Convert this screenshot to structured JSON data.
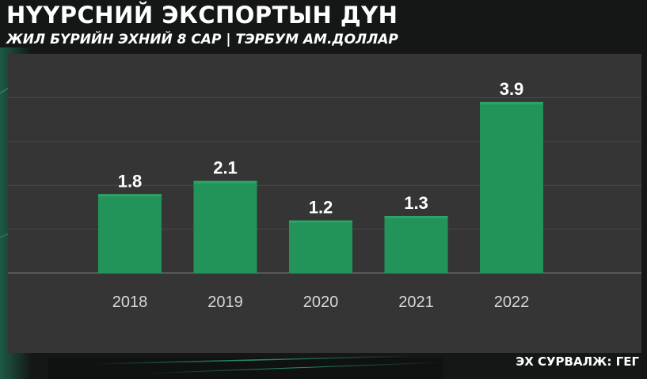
{
  "header": {
    "title": "НҮҮРСНИЙ ЭКСПОРТЫН ДҮН",
    "subtitle": "ЖИЛ БҮРИЙН ЭХНИЙ 8 САР | ТЭРБУМ АМ.ДОЛЛАР"
  },
  "footer": {
    "source": "ЭХ СУРВАЛЖ: ГЕГ"
  },
  "colors": {
    "bar": "#22945a",
    "bar_top": "#2aa566",
    "panel": "#353535",
    "grid": "#4a4a4a",
    "baseline": "#595959",
    "value_label": "#ffffff",
    "tick_label": "#d8d8d8"
  },
  "chart_data": {
    "type": "bar",
    "title": "НҮҮРСНИЙ ЭКСПОРТЫН ДҮН",
    "subtitle": "ЖИЛ БҮРИЙН ЭХНИЙ 8 САР | ТЭРБУМ АМ.ДОЛЛАР",
    "categories": [
      "2018",
      "2019",
      "2020",
      "2021",
      "2022"
    ],
    "values": [
      1.8,
      2.1,
      1.2,
      1.3,
      3.9
    ],
    "value_labels": [
      "1.8",
      "2.1",
      "1.2",
      "1.3",
      "3.9"
    ],
    "xlabel": "",
    "ylabel": "",
    "ylim": [
      0,
      5
    ],
    "grid": true,
    "legend": "none"
  }
}
